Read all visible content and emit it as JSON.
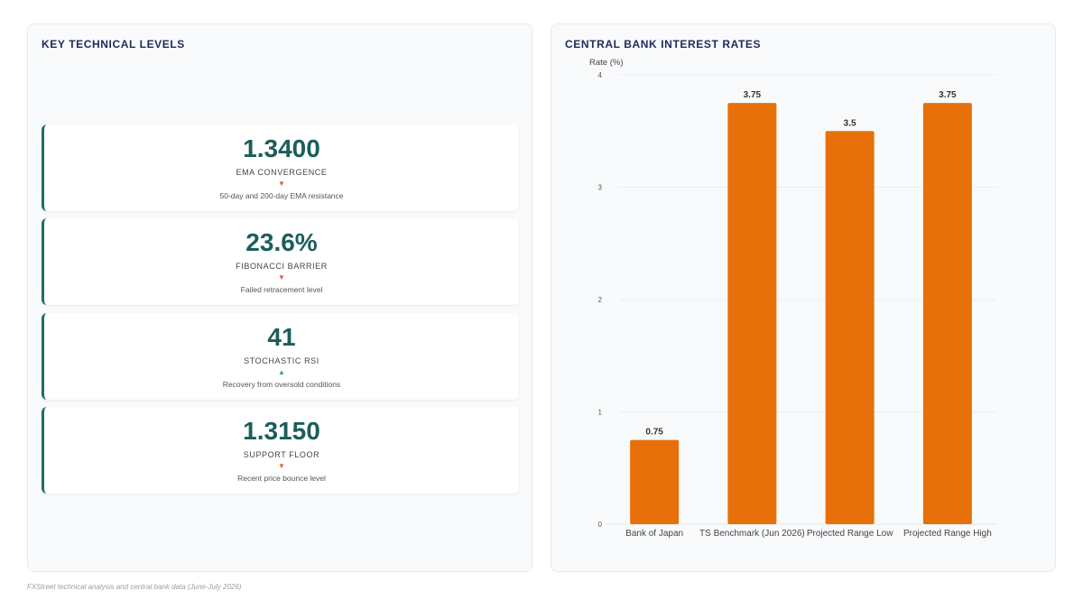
{
  "left_panel": {
    "title": "KEY TECHNICAL LEVELS",
    "levels": [
      {
        "value": "1.3400",
        "label": "EMA CONVERGENCE",
        "direction": "down",
        "arrow": "▼",
        "description": "50-day and 200-day EMA resistance"
      },
      {
        "value": "23.6%",
        "label": "FIBONACCI BARRIER",
        "direction": "down",
        "arrow": "▼",
        "description": "Failed retracement level"
      },
      {
        "value": "41",
        "label": "STOCHASTIC RSI",
        "direction": "up",
        "arrow": "▲",
        "description": "Recovery from oversold conditions"
      },
      {
        "value": "1.3150",
        "label": "SUPPORT FLOOR",
        "direction": "down",
        "arrow": "▼",
        "description": "Recent price bounce level"
      }
    ]
  },
  "right_panel": {
    "title": "CENTRAL BANK INTEREST RATES"
  },
  "chart_data": {
    "type": "bar",
    "title": "CENTRAL BANK INTEREST RATES",
    "ylabel": "Rate (%)",
    "xlabel": "",
    "categories": [
      "Bank of Japan",
      "TS Benchmark (Jun 2026)",
      "Projected Range Low",
      "Projected Range High"
    ],
    "values": [
      0.75,
      3.75,
      3.5,
      3.75
    ],
    "data_labels": [
      "0.75",
      "3.75",
      "3.5",
      "3.75"
    ],
    "ylim": [
      0,
      4
    ],
    "yticks": [
      "0",
      "1",
      "2",
      "3",
      "4"
    ],
    "bar_color": "#e8700a",
    "grid": true,
    "legend": "none"
  },
  "footer": {
    "source": "FXStreet technical analysis and central bank data (June-July 2026)"
  },
  "colors": {
    "accent": "#1b6e6a",
    "value_text": "#1b5e5b",
    "title_text": "#1f2a5c",
    "arrow_down": "#d9633a",
    "arrow_up": "#2aa88a"
  }
}
